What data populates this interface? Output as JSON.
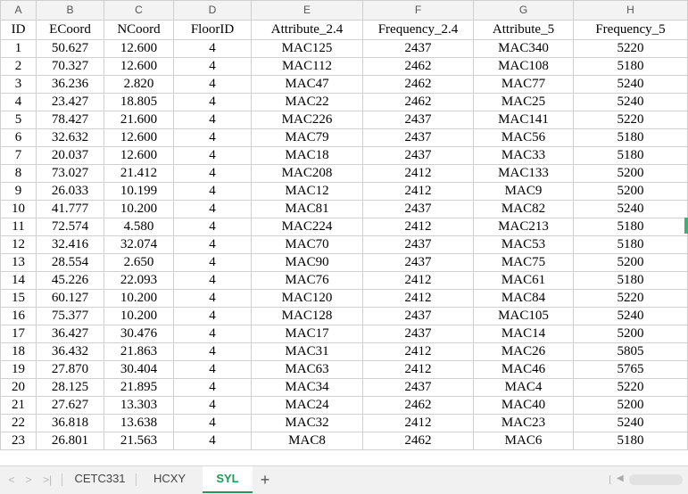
{
  "columns": [
    "A",
    "B",
    "C",
    "D",
    "E",
    "F",
    "G",
    "H"
  ],
  "headers": [
    "ID",
    "ECoord",
    "NCoord",
    "FloorID",
    "Attribute_2.4",
    "Frequency_2.4",
    "Attribute_5",
    "Frequency_5"
  ],
  "rows": [
    [
      "1",
      "50.627",
      "12.600",
      "4",
      "MAC125",
      "2437",
      "MAC340",
      "5220"
    ],
    [
      "2",
      "70.327",
      "12.600",
      "4",
      "MAC112",
      "2462",
      "MAC108",
      "5180"
    ],
    [
      "3",
      "36.236",
      "2.820",
      "4",
      "MAC47",
      "2462",
      "MAC77",
      "5240"
    ],
    [
      "4",
      "23.427",
      "18.805",
      "4",
      "MAC22",
      "2462",
      "MAC25",
      "5240"
    ],
    [
      "5",
      "78.427",
      "21.600",
      "4",
      "MAC226",
      "2437",
      "MAC141",
      "5220"
    ],
    [
      "6",
      "32.632",
      "12.600",
      "4",
      "MAC79",
      "2437",
      "MAC56",
      "5180"
    ],
    [
      "7",
      "20.037",
      "12.600",
      "4",
      "MAC18",
      "2437",
      "MAC33",
      "5180"
    ],
    [
      "8",
      "73.027",
      "21.412",
      "4",
      "MAC208",
      "2412",
      "MAC133",
      "5200"
    ],
    [
      "9",
      "26.033",
      "10.199",
      "4",
      "MAC12",
      "2412",
      "MAC9",
      "5200"
    ],
    [
      "10",
      "41.777",
      "10.200",
      "4",
      "MAC81",
      "2437",
      "MAC82",
      "5240"
    ],
    [
      "11",
      "72.574",
      "4.580",
      "4",
      "MAC224",
      "2412",
      "MAC213",
      "5180"
    ],
    [
      "12",
      "32.416",
      "32.074",
      "4",
      "MAC70",
      "2437",
      "MAC53",
      "5180"
    ],
    [
      "13",
      "28.554",
      "2.650",
      "4",
      "MAC90",
      "2437",
      "MAC75",
      "5200"
    ],
    [
      "14",
      "45.226",
      "22.093",
      "4",
      "MAC76",
      "2412",
      "MAC61",
      "5180"
    ],
    [
      "15",
      "60.127",
      "10.200",
      "4",
      "MAC120",
      "2412",
      "MAC84",
      "5220"
    ],
    [
      "16",
      "75.377",
      "10.200",
      "4",
      "MAC128",
      "2437",
      "MAC105",
      "5240"
    ],
    [
      "17",
      "36.427",
      "30.476",
      "4",
      "MAC17",
      "2437",
      "MAC14",
      "5200"
    ],
    [
      "18",
      "36.432",
      "21.863",
      "4",
      "MAC31",
      "2412",
      "MAC26",
      "5805"
    ],
    [
      "19",
      "27.870",
      "30.404",
      "4",
      "MAC63",
      "2412",
      "MAC46",
      "5765"
    ],
    [
      "20",
      "28.125",
      "21.895",
      "4",
      "MAC34",
      "2437",
      "MAC4",
      "5220"
    ],
    [
      "21",
      "27.627",
      "13.303",
      "4",
      "MAC24",
      "2462",
      "MAC40",
      "5200"
    ],
    [
      "22",
      "36.818",
      "13.638",
      "4",
      "MAC32",
      "2412",
      "MAC23",
      "5240"
    ],
    [
      "23",
      "26.801",
      "21.563",
      "4",
      "MAC8",
      "2462",
      "MAC6",
      "5180"
    ]
  ],
  "tabs": [
    "CETC331",
    "HCXY",
    "SYL"
  ],
  "active_tab": "SYL",
  "nav": {
    "first": "<",
    "prev": ">",
    "last": ">|",
    "add": "+"
  },
  "colors": {
    "accent": "#1f9a58",
    "grid": "#d0d0d0",
    "header_bg": "#f3f3f3"
  }
}
